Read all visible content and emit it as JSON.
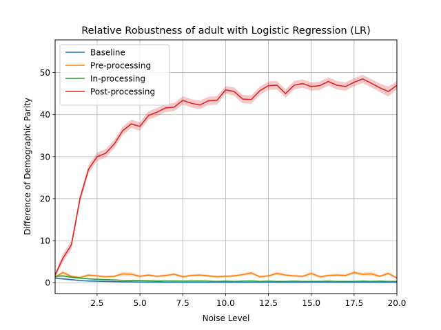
{
  "chart_data": {
    "type": "line",
    "title": "Relative Robustness of adult with Logistic Regression (LR)",
    "xlabel": "Noise Level",
    "ylabel": "Difference of Demographic Parity",
    "xlim": [
      0.05,
      20.0
    ],
    "ylim": [
      -2.6,
      57.8
    ],
    "xticks": [
      2.5,
      5.0,
      7.5,
      10.0,
      12.5,
      15.0,
      17.5,
      20.0
    ],
    "xtick_labels": [
      "2.5",
      "5.0",
      "7.5",
      "10.0",
      "12.5",
      "15.0",
      "17.5",
      "20.0"
    ],
    "yticks": [
      0,
      10,
      20,
      30,
      40,
      50
    ],
    "ytick_labels": [
      "0",
      "10",
      "20",
      "30",
      "40",
      "50"
    ],
    "grid": true,
    "legend_position": "top-left",
    "x": [
      0.05,
      0.5,
      1.0,
      1.5,
      2.0,
      2.5,
      3.0,
      3.5,
      4.0,
      4.5,
      5.0,
      5.5,
      6.0,
      6.5,
      7.0,
      7.5,
      8.0,
      8.5,
      9.0,
      9.5,
      10.0,
      10.5,
      11.0,
      11.5,
      12.0,
      12.5,
      13.0,
      13.5,
      14.0,
      14.5,
      15.0,
      15.5,
      16.0,
      16.5,
      17.0,
      17.5,
      18.0,
      18.5,
      19.0,
      19.5,
      20.0
    ],
    "series": [
      {
        "name": "Baseline",
        "color": "#1f77b4",
        "band_color": "#1f77b4",
        "values": [
          1.1,
          0.9,
          0.7,
          0.5,
          0.4,
          0.35,
          0.3,
          0.25,
          0.2,
          0.2,
          0.15,
          0.15,
          0.15,
          0.1,
          0.1,
          0.1,
          0.1,
          0.1,
          0.1,
          0.1,
          0.1,
          0.1,
          0.1,
          0.1,
          0.1,
          0.1,
          0.1,
          0.1,
          0.1,
          0.1,
          0.1,
          0.1,
          0.1,
          0.1,
          0.1,
          0.1,
          0.1,
          0.1,
          0.1,
          0.1,
          0.1
        ],
        "spread": [
          0.2,
          0.2,
          0.2,
          0.15,
          0.15,
          0.15,
          0.15,
          0.1,
          0.1,
          0.1,
          0.1,
          0.1,
          0.1,
          0.1,
          0.1,
          0.1,
          0.1,
          0.1,
          0.1,
          0.1,
          0.1,
          0.1,
          0.1,
          0.1,
          0.1,
          0.1,
          0.1,
          0.1,
          0.1,
          0.1,
          0.1,
          0.1,
          0.1,
          0.1,
          0.1,
          0.1,
          0.1,
          0.1,
          0.1,
          0.1,
          0.1
        ]
      },
      {
        "name": "Pre-processing",
        "color": "#ff7f0e",
        "band_color": "#ff7f0e",
        "values": [
          1.3,
          2.4,
          1.5,
          1.2,
          1.8,
          1.6,
          1.4,
          1.5,
          2.1,
          2.0,
          1.5,
          1.8,
          1.5,
          1.7,
          2.0,
          1.4,
          1.7,
          1.8,
          1.6,
          1.4,
          1.5,
          1.6,
          1.9,
          2.3,
          1.4,
          1.6,
          2.2,
          1.8,
          1.6,
          1.5,
          2.2,
          1.4,
          1.7,
          1.8,
          1.7,
          2.4,
          2.0,
          2.1,
          1.5,
          2.2,
          1.1
        ],
        "spread": [
          0.3,
          0.4,
          0.3,
          0.3,
          0.3,
          0.3,
          0.3,
          0.3,
          0.4,
          0.4,
          0.3,
          0.3,
          0.3,
          0.3,
          0.3,
          0.3,
          0.3,
          0.3,
          0.3,
          0.3,
          0.3,
          0.3,
          0.3,
          0.4,
          0.3,
          0.3,
          0.4,
          0.3,
          0.3,
          0.3,
          0.4,
          0.3,
          0.3,
          0.3,
          0.3,
          0.4,
          0.4,
          0.5,
          0.3,
          0.4,
          0.3
        ]
      },
      {
        "name": "In-processing",
        "color": "#2ca02c",
        "band_color": "#2ca02c",
        "values": [
          1.5,
          1.6,
          1.3,
          1.1,
          0.9,
          0.8,
          0.7,
          0.65,
          0.55,
          0.5,
          0.5,
          0.45,
          0.4,
          0.4,
          0.4,
          0.35,
          0.4,
          0.4,
          0.35,
          0.3,
          0.35,
          0.3,
          0.35,
          0.4,
          0.3,
          0.35,
          0.3,
          0.3,
          0.35,
          0.3,
          0.3,
          0.3,
          0.35,
          0.3,
          0.3,
          0.3,
          0.35,
          0.3,
          0.35,
          0.3,
          0.3
        ],
        "spread": [
          0.2,
          0.2,
          0.2,
          0.15,
          0.15,
          0.15,
          0.1,
          0.1,
          0.1,
          0.1,
          0.1,
          0.1,
          0.1,
          0.1,
          0.1,
          0.1,
          0.1,
          0.1,
          0.1,
          0.1,
          0.1,
          0.1,
          0.1,
          0.1,
          0.1,
          0.1,
          0.1,
          0.1,
          0.1,
          0.1,
          0.1,
          0.1,
          0.1,
          0.1,
          0.1,
          0.1,
          0.1,
          0.1,
          0.1,
          0.1,
          0.1
        ]
      },
      {
        "name": "Post-processing",
        "color": "#d62728",
        "band_color": "#d62728",
        "values": [
          1.8,
          5.8,
          9.0,
          20.0,
          27.0,
          30.0,
          30.8,
          33.0,
          36.2,
          37.8,
          37.2,
          39.8,
          40.6,
          41.6,
          41.8,
          43.4,
          42.7,
          42.3,
          43.3,
          43.4,
          45.9,
          45.5,
          43.7,
          43.6,
          45.7,
          46.9,
          47.0,
          45.0,
          47.0,
          47.4,
          46.7,
          46.9,
          47.9,
          47.0,
          46.7,
          47.7,
          48.5,
          47.5,
          46.4,
          45.5,
          47.0
        ],
        "spread": [
          0.6,
          1.0,
          1.0,
          1.0,
          1.0,
          1.0,
          1.0,
          1.0,
          1.0,
          1.0,
          1.0,
          1.0,
          1.0,
          1.0,
          1.0,
          1.0,
          1.0,
          1.0,
          1.0,
          1.0,
          0.9,
          1.0,
          1.0,
          1.0,
          1.0,
          1.0,
          1.0,
          1.0,
          1.0,
          1.0,
          1.0,
          1.0,
          1.0,
          1.0,
          1.0,
          1.0,
          1.0,
          1.0,
          1.0,
          1.2,
          1.0
        ]
      }
    ]
  }
}
